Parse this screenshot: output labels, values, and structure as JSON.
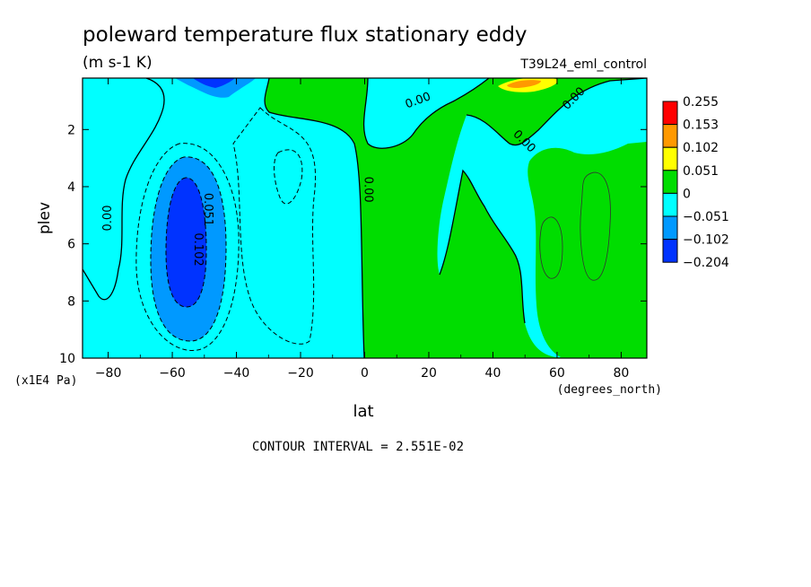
{
  "chart_data": {
    "type": "heatmap",
    "title": "poleward temperature flux stationary eddy",
    "units": "(m s-1 K)",
    "dataset": "T39L24_eml_control",
    "xlabel": "lat",
    "xunits": "(degrees_north)",
    "ylabel": "plev",
    "yunits": "(x1E4 Pa)",
    "xlim": [
      -88,
      88
    ],
    "ylim": [
      0.2,
      10
    ],
    "y_inverted": true,
    "x_ticks": [
      -80,
      -60,
      -40,
      -20,
      0,
      20,
      40,
      60,
      80
    ],
    "x_tick_labels": [
      "−80",
      "−60",
      "−40",
      "−20",
      "0",
      "20",
      "40",
      "60",
      "80"
    ],
    "y_ticks": [
      2,
      4,
      6,
      8,
      10
    ],
    "y_tick_labels": [
      "2",
      "4",
      "6",
      "8",
      "10"
    ],
    "contour_interval_text": "CONTOUR INTERVAL = 2.551E-02",
    "colorbar": {
      "levels": [
        "0.255",
        "0.153",
        "0.102",
        "0.051",
        "0",
        "−0.051",
        "−0.102",
        "−0.204"
      ],
      "colors": [
        "#ff0000",
        "#ff9900",
        "#ffff00",
        "#00dd00",
        "#00ffff",
        "#0099ff",
        "#0033ff"
      ]
    },
    "contour_labels": [
      {
        "text": "0.00",
        "lat": -79,
        "plev": 5.1,
        "rotate": -90
      },
      {
        "text": "0.051",
        "lat": -50,
        "plev": 4.8,
        "rotate": 90
      },
      {
        "text": "0.102",
        "lat": -53,
        "plev": 6.2,
        "rotate": 90
      },
      {
        "text": "0.00",
        "lat": 0,
        "plev": 4.1,
        "rotate": 90
      },
      {
        "text": "0.00",
        "lat": 17,
        "plev": 1.1,
        "rotate": -20
      },
      {
        "text": "0.00",
        "lat": 49,
        "plev": 2.5,
        "rotate": 45
      },
      {
        "text": "0.00",
        "lat": 66,
        "plev": 1.0,
        "rotate": -45
      }
    ]
  }
}
